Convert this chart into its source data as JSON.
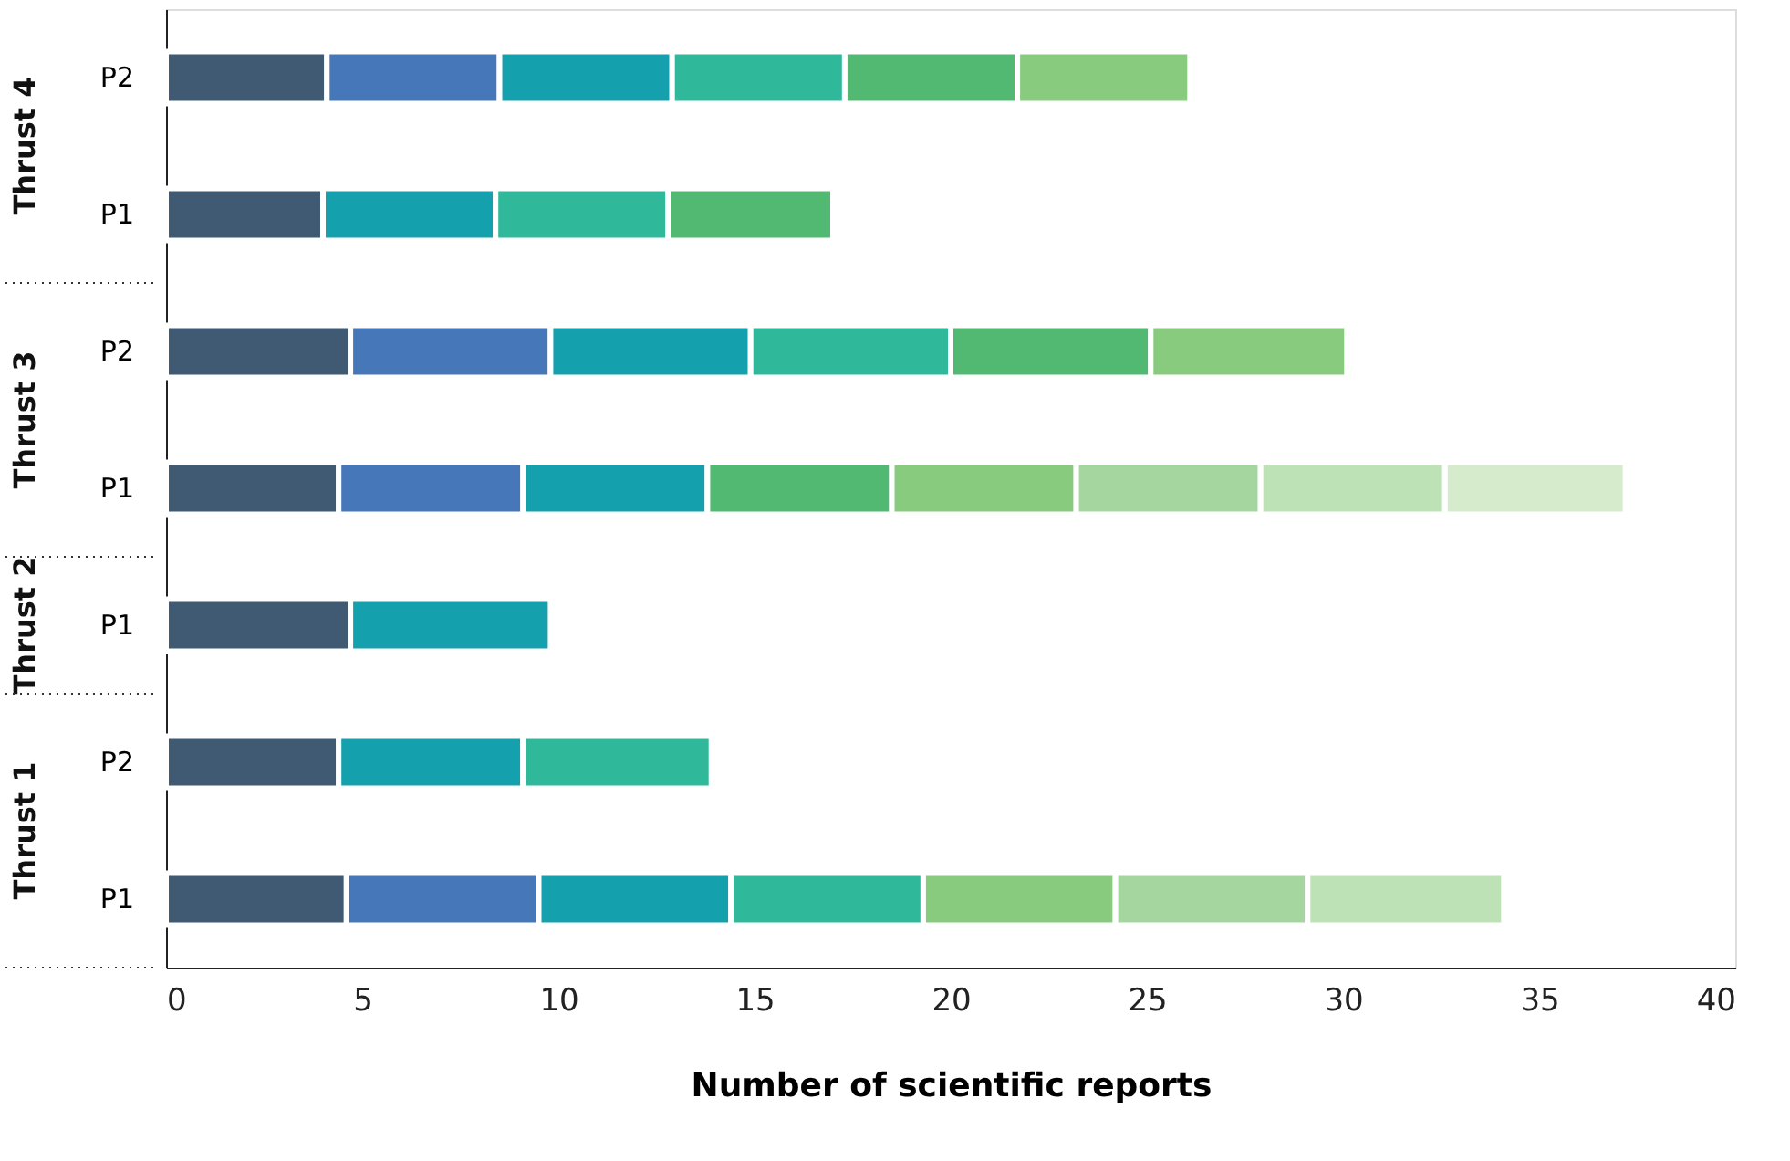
{
  "chart_data": {
    "type": "bar",
    "orientation": "horizontal",
    "stacked": true,
    "grid": false,
    "xlabel": "Number of scientific reports",
    "categories": [
      "P2",
      "P1",
      "P2",
      "P1",
      "P1",
      "P2",
      "P1"
    ],
    "annotations": [
      "Thrust 4",
      "Thrust 3",
      "Thrust 2",
      "Thrust 1"
    ],
    "xlim": [
      0,
      40
    ],
    "xticks": [
      0,
      5,
      10,
      15,
      20,
      25,
      30,
      35,
      40
    ],
    "series": [
      {
        "values": [
          4.1,
          4.0,
          4.7,
          4.4,
          4.7,
          4.4,
          4.6
        ],
        "colors": [
          "#3f5a72",
          "#3f5a72",
          "#3f5a72",
          "#3f5a72",
          "#3f5a72",
          "#3f5a72",
          "#3f5a72"
        ]
      },
      {
        "values": [
          4.4,
          4.4,
          5.1,
          4.7,
          5.1,
          4.7,
          4.9
        ],
        "colors": [
          "#4677b8",
          "#15a0ad",
          "#4677b8",
          "#4677b8",
          "#15a0ad",
          "#15a0ad",
          "#4677b8"
        ]
      },
      {
        "values": [
          4.4,
          4.4,
          5.1,
          4.7,
          null,
          4.8,
          4.9
        ],
        "colors": [
          "#15a0ad",
          "#2fb99a",
          "#15a0ad",
          "#15a0ad",
          null,
          "#2fb99a",
          "#15a0ad"
        ]
      },
      {
        "values": [
          4.4,
          4.2,
          5.1,
          4.7,
          null,
          null,
          4.9
        ],
        "colors": [
          "#2fb99a",
          "#52b973",
          "#2fb99a",
          "#52b973",
          null,
          null,
          "#2fb99a"
        ]
      },
      {
        "values": [
          4.4,
          null,
          5.1,
          4.7,
          null,
          null,
          4.9
        ],
        "colors": [
          "#52b973",
          null,
          "#52b973",
          "#88cb7f",
          null,
          null,
          "#88cb7f"
        ]
      },
      {
        "values": [
          4.4,
          null,
          5.0,
          4.7,
          null,
          null,
          4.9
        ],
        "colors": [
          "#88cb7f",
          null,
          "#88cb7f",
          "#a6d6a0",
          null,
          null,
          "#a6d6a0"
        ]
      },
      {
        "values": [
          null,
          null,
          null,
          4.7,
          null,
          null,
          5.0
        ],
        "colors": [
          null,
          null,
          null,
          "#bde2b6",
          null,
          null,
          "#bde2b6"
        ]
      },
      {
        "values": [
          null,
          null,
          null,
          4.6,
          null,
          null,
          null
        ],
        "colors": [
          null,
          null,
          null,
          "#d5ebcb",
          null,
          null,
          null
        ]
      }
    ]
  }
}
